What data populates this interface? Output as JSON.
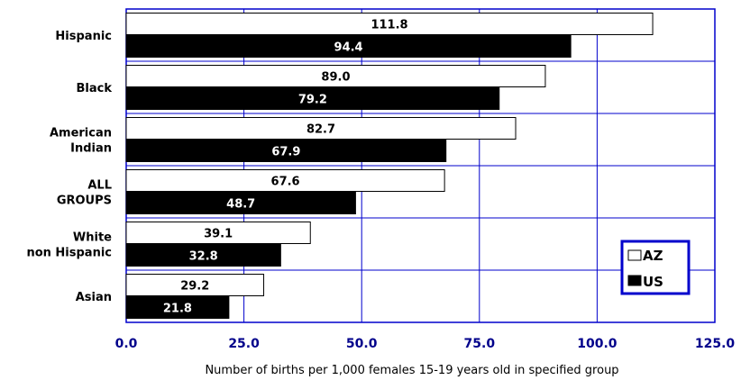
{
  "chart_data": {
    "type": "bar",
    "orientation": "horizontal",
    "categories": [
      "Hispanic",
      "Black",
      "American Indian",
      "ALL GROUPS",
      "White non Hispanic",
      "Asian"
    ],
    "category_lines": [
      [
        "Hispanic"
      ],
      [
        "Black"
      ],
      [
        "American",
        "Indian"
      ],
      [
        "ALL",
        "GROUPS"
      ],
      [
        "White",
        "non Hispanic"
      ],
      [
        "Asian"
      ]
    ],
    "series": [
      {
        "name": "AZ",
        "color": "#ffffff",
        "values": [
          111.8,
          89.0,
          82.7,
          67.6,
          39.1,
          29.2
        ],
        "labels": [
          "111.8",
          "89.0",
          "82.7",
          "67.6",
          "39.1",
          "29.2"
        ]
      },
      {
        "name": "US",
        "color": "#000000",
        "values": [
          94.4,
          79.2,
          67.9,
          48.7,
          32.8,
          21.8
        ],
        "labels": [
          "94.4",
          "79.2",
          "67.9",
          "48.7",
          "32.8",
          "21.8"
        ]
      }
    ],
    "xlabel": "Number of births per 1,000 females 15-19 years old in specified group",
    "xlim": [
      0,
      125
    ],
    "xticks": [
      0,
      25,
      50,
      75,
      100,
      125
    ],
    "xtick_labels": [
      "0.0",
      "25.0",
      "50.0",
      "75.0",
      "100.0",
      "125.0"
    ],
    "grid": true,
    "grid_color": "#0000cc",
    "legend_position": "bottom-right"
  }
}
